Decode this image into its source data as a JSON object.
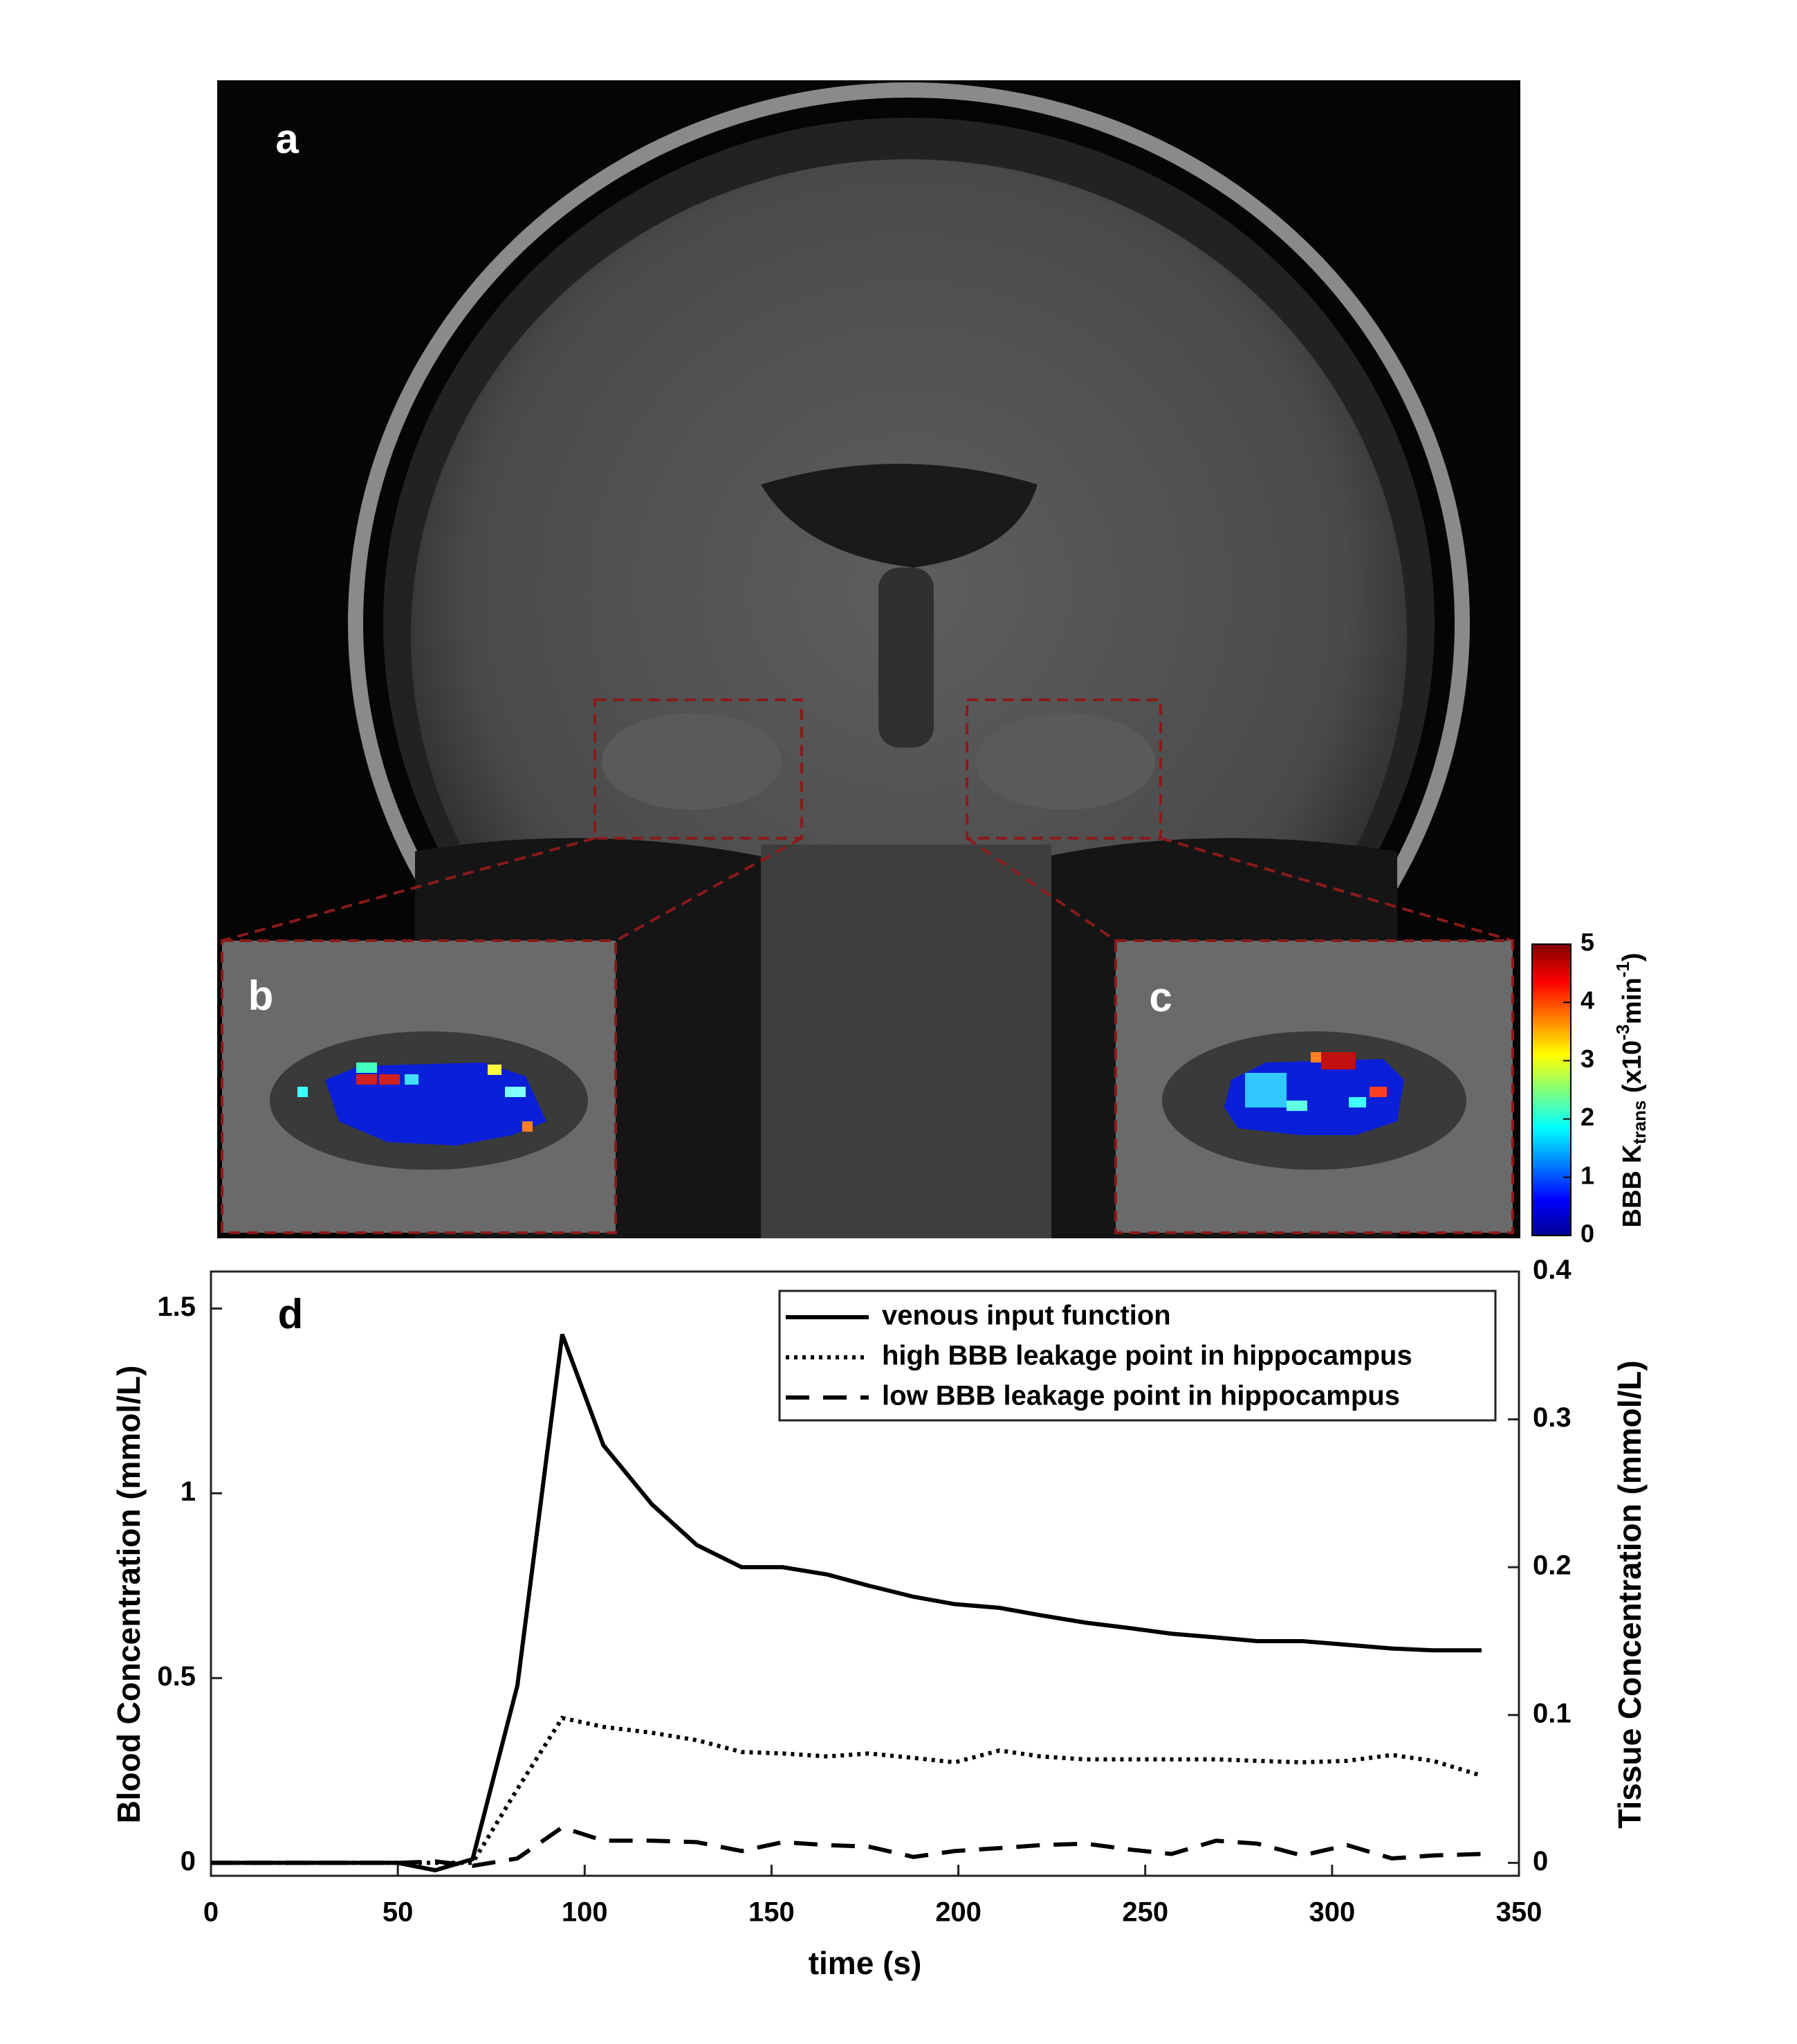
{
  "image": {
    "panel_labels": [
      "a",
      "b",
      "c"
    ],
    "colorbar": {
      "lim": [
        0,
        5
      ],
      "ticks": [
        0,
        1,
        2,
        3,
        4,
        5
      ],
      "label": {
        "main": "BBB K",
        "sub": "trans",
        "open": " (x10",
        "sup1": "-3",
        "unit": "min",
        "sup2": "-1",
        "close": ")"
      }
    }
  },
  "chart_data": {
    "type": "line",
    "panel_label": "d",
    "xlabel": "time (s)",
    "ylabel": "Blood Concentration (mmol/L)",
    "y2label": "Tissue Concentration (mmol/L)",
    "x": [
      0,
      50,
      60,
      70,
      82,
      94,
      105,
      118,
      130,
      142,
      153,
      165,
      176,
      188,
      199,
      211,
      222,
      234,
      246,
      257,
      269,
      280,
      292,
      304,
      316,
      327,
      340
    ],
    "series": [
      {
        "name": "venous input function",
        "color": "#000000",
        "style": "solid",
        "values": [
          0,
          0,
          -0.02,
          0.01,
          0.48,
          1.43,
          1.13,
          0.97,
          0.86,
          0.8,
          0.8,
          0.78,
          0.75,
          0.72,
          0.7,
          0.69,
          0.67,
          0.65,
          0.635,
          0.62,
          0.61,
          0.6,
          0.6,
          0.59,
          0.58,
          0.575,
          0.575
        ]
      },
      {
        "name": "high BBB leakage point in hippocampus",
        "color": "#000000",
        "style": "dotted",
        "axis": "y2",
        "values": [
          0,
          0,
          0,
          0,
          0.05,
          0.098,
          0.092,
          0.088,
          0.083,
          0.075,
          0.074,
          0.072,
          0.074,
          0.071,
          0.068,
          0.076,
          0.072,
          0.07,
          0.07,
          0.07,
          0.07,
          0.069,
          0.068,
          0.069,
          0.073,
          0.069,
          0.059
        ]
      },
      {
        "name": "low BBB leakage point in hippocampus",
        "color": "#000000",
        "style": "dashed",
        "axis": "y2",
        "values": [
          0,
          0,
          0.001,
          -0.002,
          0.003,
          0.024,
          0.015,
          0.015,
          0.014,
          0.008,
          0.014,
          0.012,
          0.011,
          0.004,
          0.008,
          0.01,
          0.012,
          0.013,
          0.009,
          0.006,
          0.015,
          0.013,
          0.005,
          0.012,
          0.003,
          0.005,
          0.006
        ]
      }
    ],
    "xlim": [
      0,
      350
    ],
    "xticks": [
      0,
      50,
      100,
      150,
      200,
      250,
      300,
      350
    ],
    "ylim": [
      -0.035,
      1.6
    ],
    "yticks": [
      0,
      0.5,
      1,
      1.5
    ],
    "y2lim": [
      -0.00875,
      0.4
    ],
    "y2ticks": [
      0,
      0.1,
      0.2,
      0.3,
      0.4
    ],
    "legend": "upper right"
  }
}
